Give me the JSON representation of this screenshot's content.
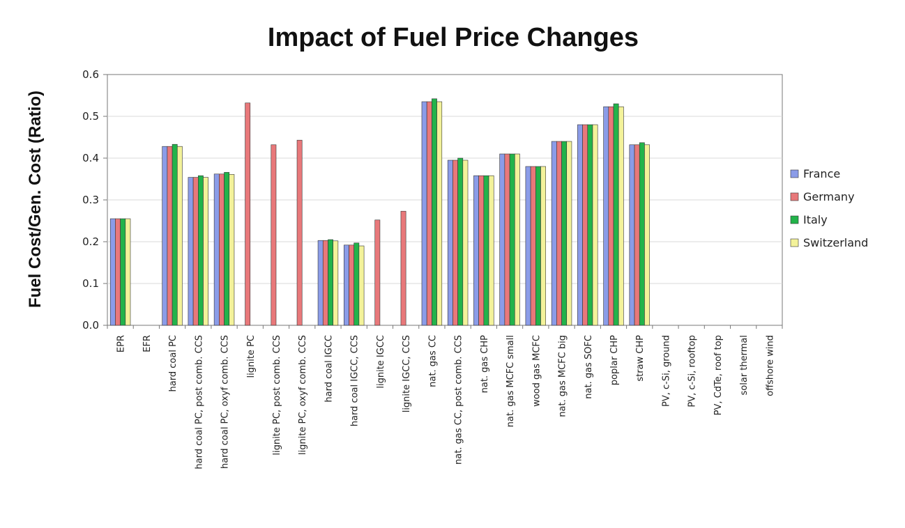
{
  "chart_data": {
    "type": "bar",
    "title": "Impact of Fuel Price Changes",
    "xlabel": "",
    "ylabel": "Fuel Cost/Gen. Cost (Ratio)",
    "ylim": [
      0,
      0.6
    ],
    "yticks": [
      "0.0",
      "0.1",
      "0.2",
      "0.3",
      "0.4",
      "0.5",
      "0.6"
    ],
    "grid": true,
    "legend_position": "right",
    "categories": [
      "EPR",
      "EFR",
      "hard coal PC",
      "hard coal PC, post comb. CCS",
      "hard coal PC, oxyf comb. CCS",
      "lignite PC",
      "lignite PC, post comb. CCS",
      "lignite PC, oxyf comb. CCS",
      "hard coal IGCC",
      "hard coal IGCC, CCS",
      "lignite IGCC",
      "lignite IGCC, CCS",
      "nat. gas CC",
      "nat. gas CC, post comb. CCS",
      "nat. gas CHP",
      "nat. gas MCFC small",
      "wood gas MCFC",
      "nat. gas MCFC big",
      "nat. gas SOFC",
      "poplar CHP",
      "straw CHP",
      "PV, c-Si, ground",
      "PV, c-Si, rooftop",
      "PV, CdTe, roof top",
      "solar thermal",
      "offshore wind"
    ],
    "series": [
      {
        "name": "France",
        "color": "#8b9ce8",
        "values": [
          0.255,
          null,
          0.428,
          0.354,
          0.362,
          null,
          null,
          null,
          0.203,
          0.192,
          null,
          null,
          0.535,
          0.395,
          0.358,
          0.41,
          0.38,
          0.44,
          0.48,
          0.523,
          0.432,
          null,
          null,
          null,
          null,
          null
        ]
      },
      {
        "name": "Germany",
        "color": "#e8787a",
        "values": [
          0.255,
          null,
          0.428,
          0.354,
          0.362,
          0.532,
          0.432,
          0.443,
          0.203,
          0.192,
          0.252,
          0.273,
          0.535,
          0.395,
          0.358,
          0.41,
          0.38,
          0.44,
          0.48,
          0.523,
          0.432,
          null,
          null,
          null,
          null,
          null
        ]
      },
      {
        "name": "Italy",
        "color": "#22b34a",
        "values": [
          0.255,
          null,
          0.433,
          0.358,
          0.366,
          null,
          null,
          null,
          0.205,
          0.197,
          null,
          null,
          0.542,
          0.4,
          0.358,
          0.41,
          0.38,
          0.44,
          0.48,
          0.53,
          0.437,
          null,
          null,
          null,
          null,
          null
        ]
      },
      {
        "name": "Switzerland",
        "color": "#f3f29a",
        "values": [
          0.255,
          null,
          0.428,
          0.354,
          0.361,
          null,
          null,
          null,
          0.202,
          0.19,
          null,
          null,
          0.535,
          0.395,
          0.358,
          0.41,
          0.38,
          0.44,
          0.48,
          0.523,
          0.432,
          null,
          null,
          null,
          null,
          null
        ]
      }
    ]
  }
}
